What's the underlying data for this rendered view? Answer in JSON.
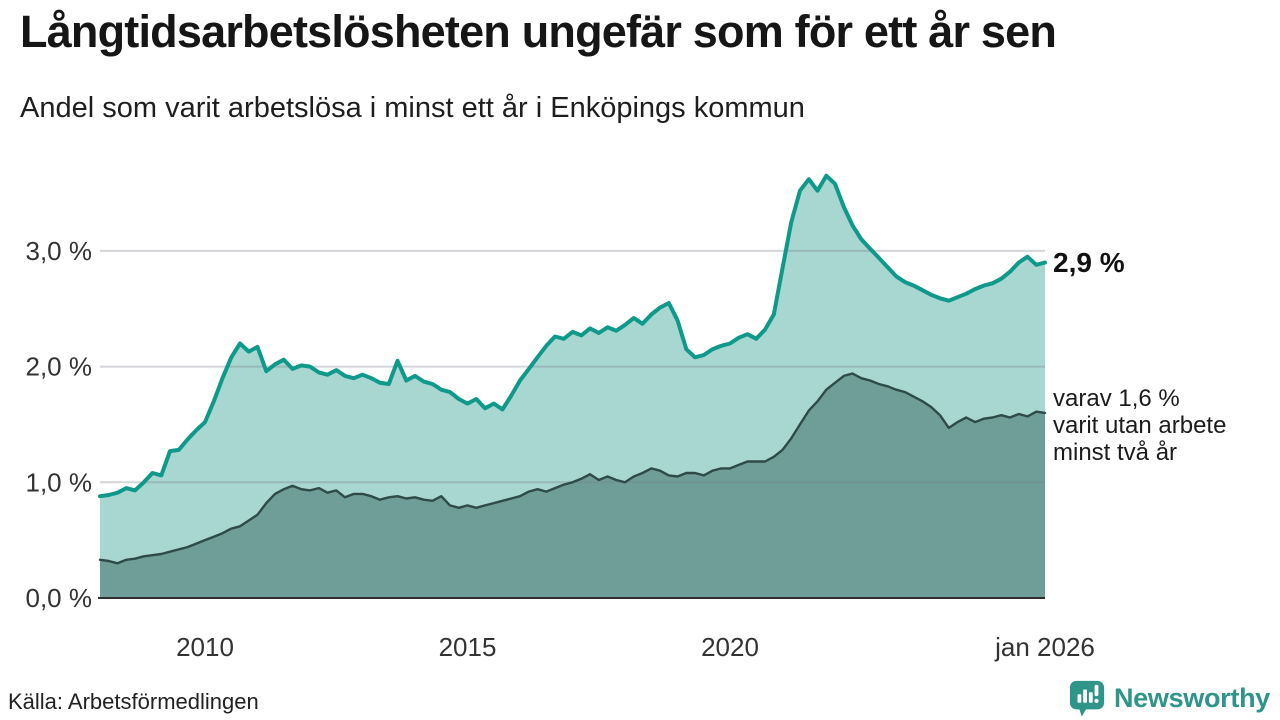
{
  "header": {
    "title": "Långtidsarbetslösheten ungefär som för ett år sen",
    "subtitle": "Andel som varit arbetslösa i minst ett år i Enköpings kommun"
  },
  "annotations": {
    "latest_value": "2,9 %",
    "secondary": [
      "varav 1,6 %",
      "varit utan arbete",
      "minst två år"
    ]
  },
  "footer": {
    "source": "Källa: Arbetsförmedlingen",
    "brand": "Newsworthy"
  },
  "colors": {
    "line_primary": "#0f998a",
    "fill_primary": "#a8d6d0",
    "line_secondary": "#2e4b48",
    "fill_secondary": "#6f9e99",
    "grid": "#d5d8dd",
    "axis": "#333333",
    "brand_teal": "#2f9588"
  },
  "chart_data": {
    "type": "area",
    "title": "Långtidsarbetslösheten ungefär som för ett år sen",
    "subtitle": "Andel som varit arbetslösa i minst ett år i Enköpings kommun",
    "unit": "%",
    "x_start": "2008-01",
    "x_end": "2026-01",
    "step_months": 2,
    "total_months": 216,
    "ylim": [
      0,
      3.8
    ],
    "grid": true,
    "y_ticks": [
      {
        "value": 0,
        "label": "0,0 %"
      },
      {
        "value": 1,
        "label": "1,0 %"
      },
      {
        "value": 2,
        "label": "2,0 %"
      },
      {
        "value": 3,
        "label": "3,0 %"
      }
    ],
    "x_ticks": [
      {
        "label": "2010",
        "month_index": 24
      },
      {
        "label": "2015",
        "month_index": 84
      },
      {
        "label": "2020",
        "month_index": 144
      },
      {
        "label": "jan 2026",
        "month_index": 216
      }
    ],
    "series": [
      {
        "name": "Arbetslösa minst ett år",
        "latest_value": 2.9,
        "color": "#0f998a",
        "fill": "#a8d6d0",
        "values": [
          0.88,
          0.89,
          0.91,
          0.95,
          0.93,
          1.0,
          1.08,
          1.06,
          1.27,
          1.28,
          1.37,
          1.45,
          1.52,
          1.7,
          1.9,
          2.08,
          2.2,
          2.13,
          2.17,
          1.96,
          2.02,
          2.06,
          1.98,
          2.01,
          2.0,
          1.95,
          1.93,
          1.97,
          1.92,
          1.9,
          1.93,
          1.9,
          1.86,
          1.85,
          2.05,
          1.88,
          1.92,
          1.87,
          1.85,
          1.8,
          1.78,
          1.72,
          1.68,
          1.72,
          1.64,
          1.68,
          1.63,
          1.75,
          1.88,
          1.98,
          2.08,
          2.18,
          2.26,
          2.24,
          2.3,
          2.27,
          2.33,
          2.29,
          2.34,
          2.31,
          2.36,
          2.42,
          2.37,
          2.45,
          2.51,
          2.55,
          2.4,
          2.15,
          2.08,
          2.1,
          2.15,
          2.18,
          2.2,
          2.25,
          2.28,
          2.24,
          2.32,
          2.45,
          2.85,
          3.25,
          3.52,
          3.62,
          3.52,
          3.65,
          3.58,
          3.38,
          3.22,
          3.1,
          3.02,
          2.94,
          2.86,
          2.78,
          2.73,
          2.7,
          2.66,
          2.62,
          2.59,
          2.57,
          2.6,
          2.63,
          2.67,
          2.7,
          2.72,
          2.76,
          2.82,
          2.9,
          2.95,
          2.88,
          2.9
        ]
      },
      {
        "name": "varav utan arbete minst två år",
        "latest_value": 1.6,
        "color": "#2e4b48",
        "fill": "#6f9e99",
        "values": [
          0.33,
          0.32,
          0.3,
          0.33,
          0.34,
          0.36,
          0.37,
          0.38,
          0.4,
          0.42,
          0.44,
          0.47,
          0.5,
          0.53,
          0.56,
          0.6,
          0.62,
          0.67,
          0.72,
          0.82,
          0.9,
          0.94,
          0.97,
          0.94,
          0.93,
          0.95,
          0.91,
          0.93,
          0.87,
          0.9,
          0.9,
          0.88,
          0.85,
          0.87,
          0.88,
          0.86,
          0.87,
          0.85,
          0.84,
          0.88,
          0.8,
          0.78,
          0.8,
          0.78,
          0.8,
          0.82,
          0.84,
          0.86,
          0.88,
          0.92,
          0.94,
          0.92,
          0.95,
          0.98,
          1.0,
          1.03,
          1.07,
          1.02,
          1.05,
          1.02,
          1.0,
          1.05,
          1.08,
          1.12,
          1.1,
          1.06,
          1.05,
          1.08,
          1.08,
          1.06,
          1.1,
          1.12,
          1.12,
          1.15,
          1.18,
          1.18,
          1.18,
          1.22,
          1.28,
          1.38,
          1.5,
          1.62,
          1.7,
          1.8,
          1.86,
          1.92,
          1.94,
          1.9,
          1.88,
          1.85,
          1.83,
          1.8,
          1.78,
          1.74,
          1.7,
          1.65,
          1.58,
          1.47,
          1.52,
          1.56,
          1.52,
          1.55,
          1.56,
          1.58,
          1.56,
          1.59,
          1.57,
          1.61,
          1.6
        ]
      }
    ]
  }
}
